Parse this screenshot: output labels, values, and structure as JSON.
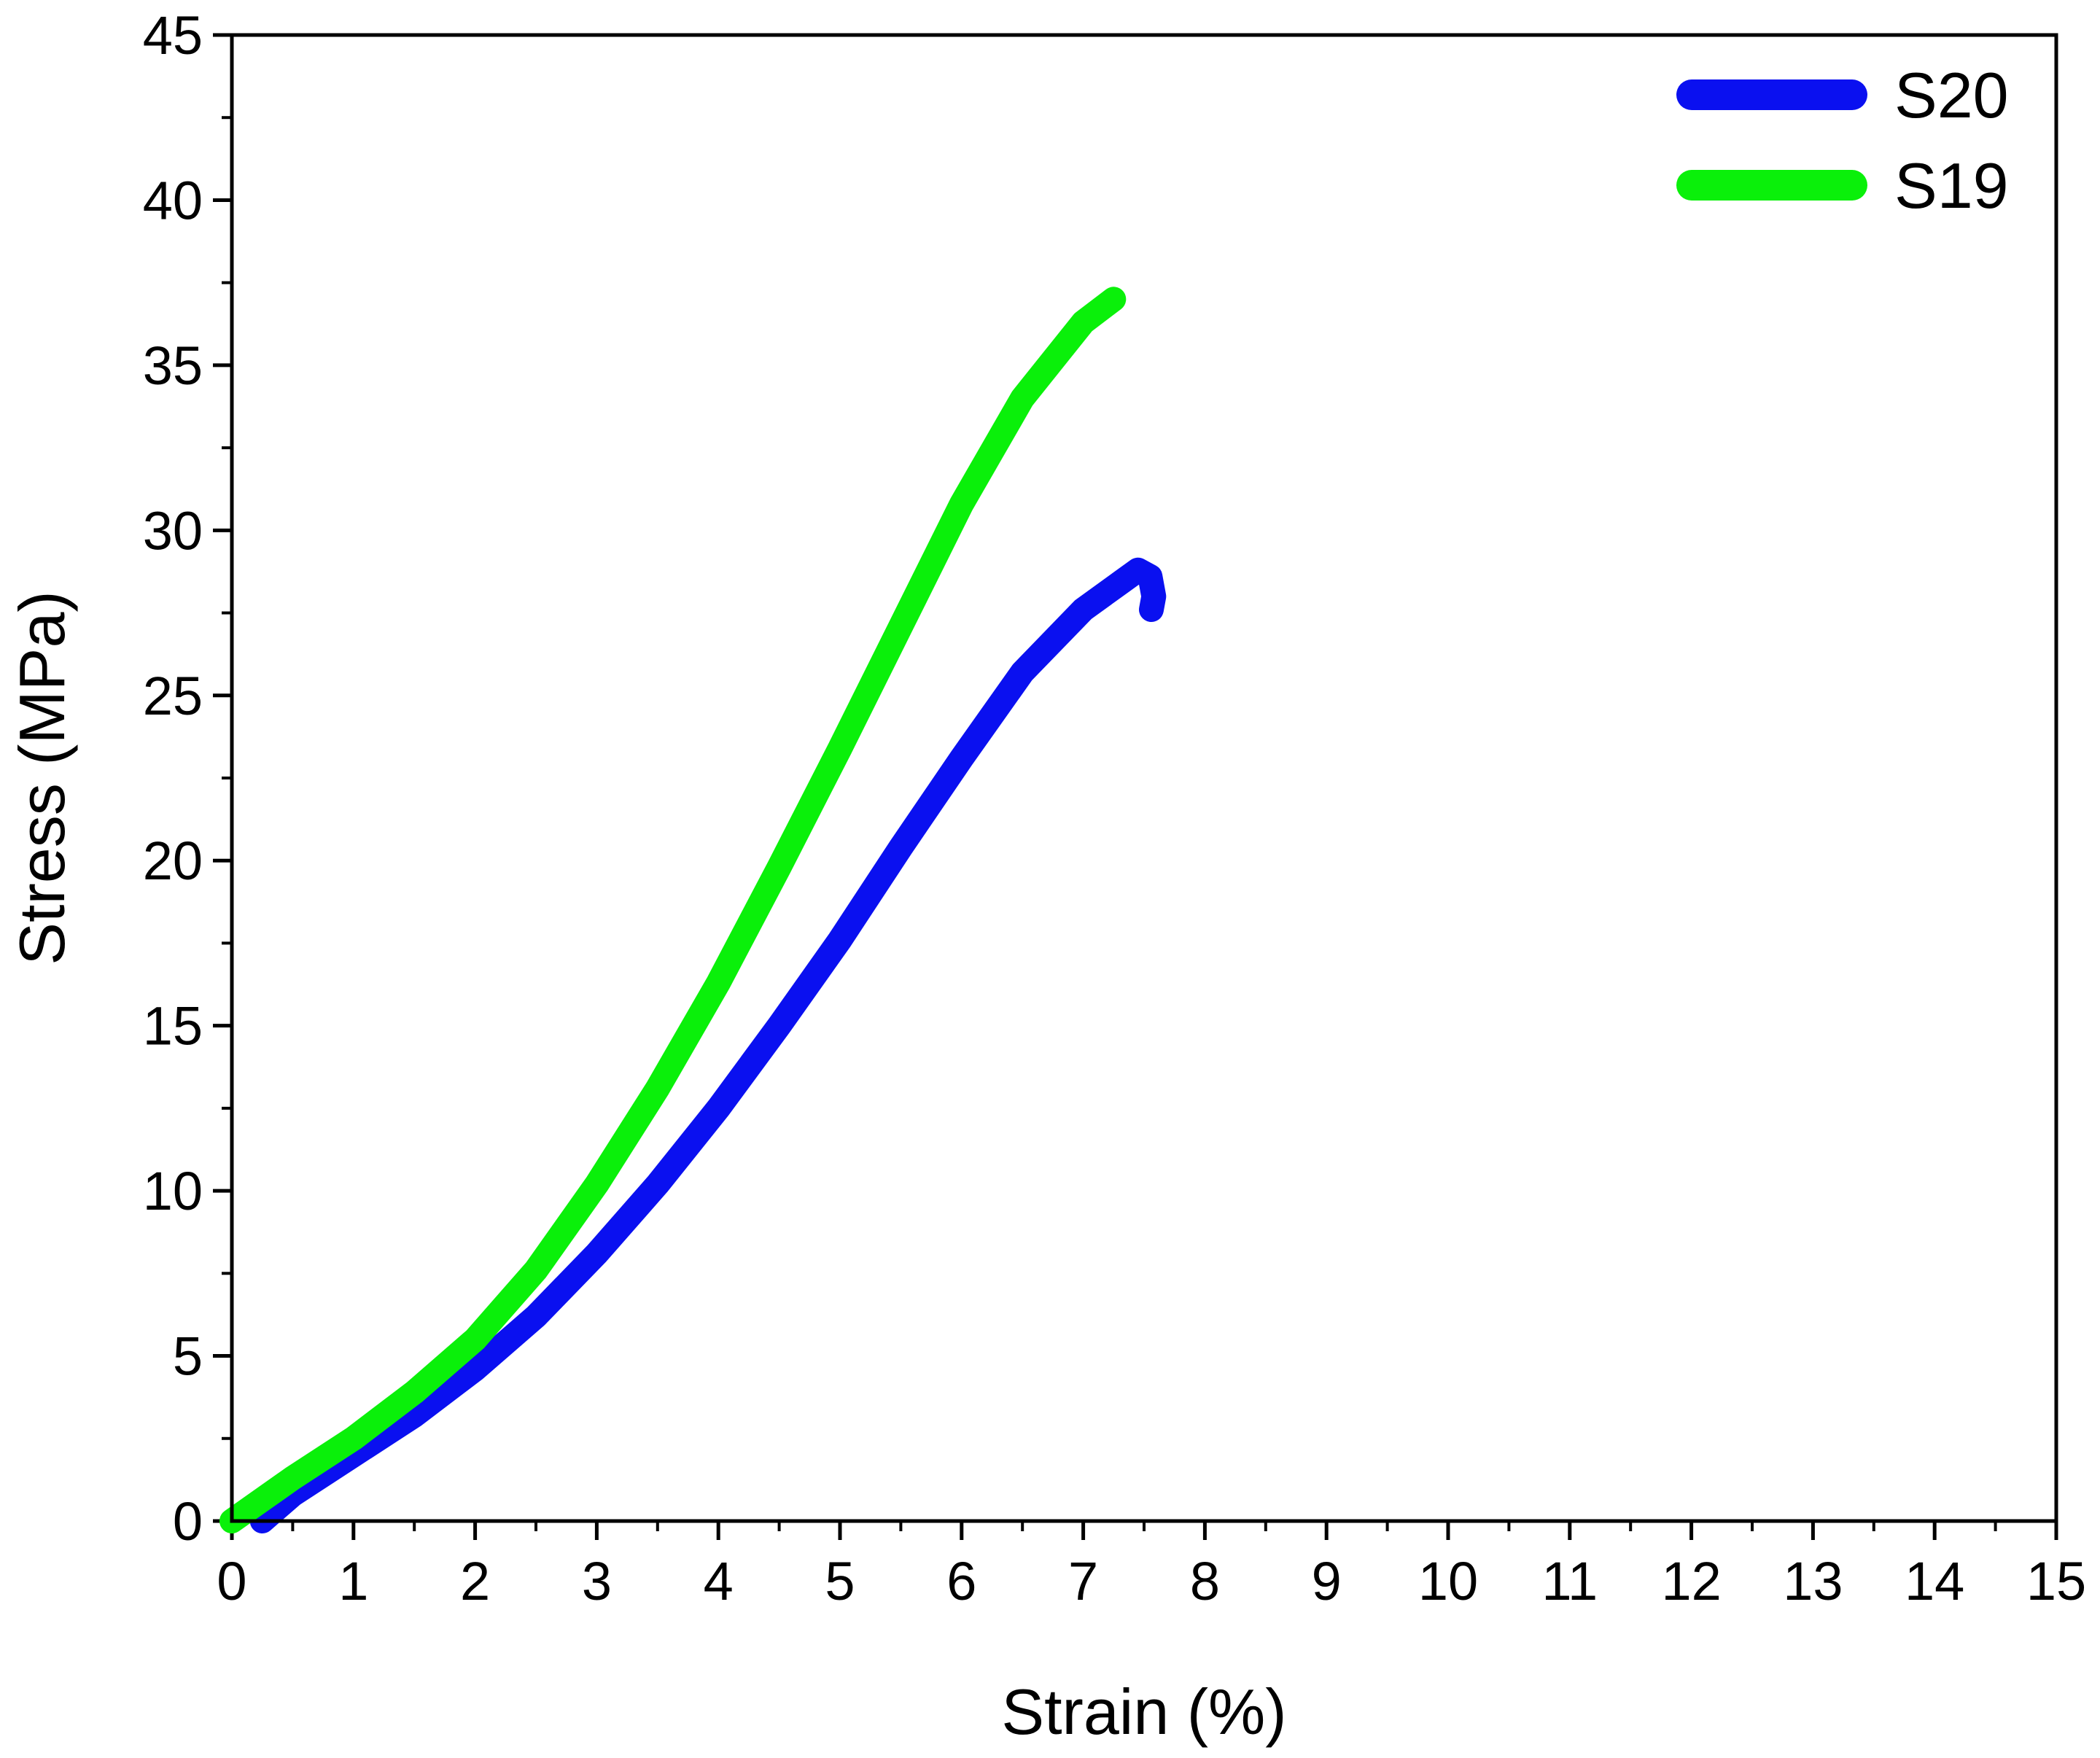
{
  "chart_data": {
    "type": "line",
    "title": "",
    "xlabel": "Strain (%)",
    "ylabel": "Stress (MPa)",
    "xlim": [
      0,
      15
    ],
    "ylim": [
      0,
      45
    ],
    "xticks": [
      0,
      1,
      2,
      3,
      4,
      5,
      6,
      7,
      8,
      9,
      10,
      11,
      12,
      13,
      14,
      15
    ],
    "yticks": [
      0,
      5,
      10,
      15,
      20,
      25,
      30,
      35,
      40,
      45
    ],
    "grid": false,
    "legend_position": "top-right",
    "series": [
      {
        "name": "S20",
        "color": "#0a10f0",
        "x": [
          0.25,
          0.5,
          1.0,
          1.5,
          2.0,
          2.5,
          3.0,
          3.5,
          4.0,
          4.5,
          5.0,
          5.5,
          6.0,
          6.5,
          7.0,
          7.3,
          7.45,
          7.55,
          7.58,
          7.56
        ],
        "y": [
          0,
          0.8,
          2.0,
          3.2,
          4.6,
          6.2,
          8.1,
          10.2,
          12.5,
          15.0,
          17.6,
          20.4,
          23.1,
          25.7,
          27.6,
          28.4,
          28.8,
          28.6,
          28.0,
          27.6
        ]
      },
      {
        "name": "S19",
        "color": "#0af00a",
        "x": [
          0.0,
          0.5,
          1.0,
          1.5,
          2.0,
          2.5,
          3.0,
          3.5,
          4.0,
          4.5,
          5.0,
          5.5,
          6.0,
          6.5,
          7.0,
          7.25
        ],
        "y": [
          0,
          1.3,
          2.5,
          3.9,
          5.5,
          7.6,
          10.2,
          13.1,
          16.3,
          19.8,
          23.4,
          27.1,
          30.8,
          34.0,
          36.3,
          37.0
        ]
      }
    ]
  }
}
